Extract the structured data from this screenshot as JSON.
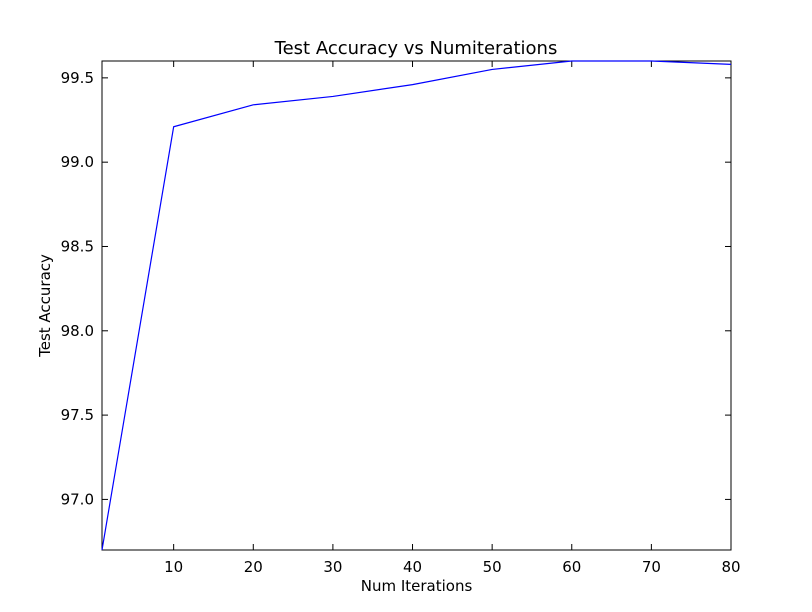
{
  "chart_data": {
    "type": "line",
    "title": "Test Accuracy vs Numiterations",
    "xlabel": "Num Iterations",
    "ylabel": "Test Accuracy",
    "xlim": [
      1,
      80
    ],
    "ylim": [
      96.7,
      99.6
    ],
    "xticks": [
      10,
      20,
      30,
      40,
      50,
      60,
      70,
      80
    ],
    "yticks": [
      97.0,
      97.5,
      98.0,
      98.5,
      99.0,
      99.5
    ],
    "ytick_labels": [
      "97.0",
      "97.5",
      "98.0",
      "98.5",
      "99.0",
      "99.5"
    ],
    "grid": false,
    "legend": "none",
    "line_color": "#0000ff",
    "series": [
      {
        "x": [
          1,
          10,
          20,
          30,
          40,
          50,
          60,
          70,
          80
        ],
        "y": [
          96.7,
          99.21,
          99.34,
          99.39,
          99.46,
          99.55,
          99.6,
          99.6,
          99.58
        ]
      }
    ]
  }
}
